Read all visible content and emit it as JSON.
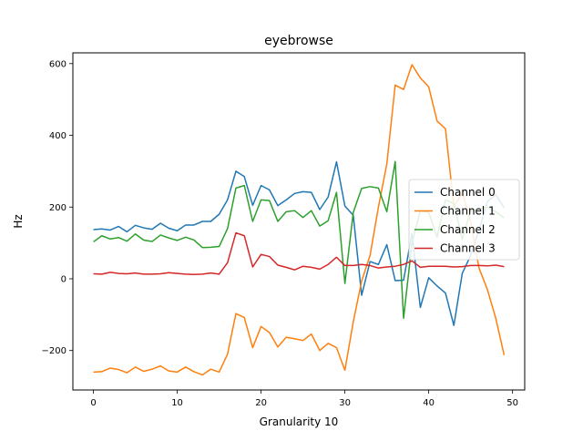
{
  "chart_data": {
    "type": "line",
    "title": "eyebrowse",
    "xlabel": "Granularity 10",
    "ylabel": "Hz",
    "xlim": [
      -2.45,
      51.45
    ],
    "ylim": [
      -310,
      630
    ],
    "xticks": [
      0,
      10,
      20,
      30,
      40,
      50
    ],
    "yticks": [
      -200,
      0,
      200,
      400,
      600
    ],
    "grid": false,
    "legend_position": "center-right",
    "x": [
      0,
      1,
      2,
      3,
      4,
      5,
      6,
      7,
      8,
      9,
      10,
      11,
      12,
      13,
      14,
      15,
      16,
      17,
      18,
      19,
      20,
      21,
      22,
      23,
      24,
      25,
      26,
      27,
      28,
      29,
      30,
      31,
      32,
      33,
      34,
      35,
      36,
      37,
      38,
      39,
      40,
      41,
      42,
      43,
      44,
      45,
      46,
      47,
      48,
      49
    ],
    "series": [
      {
        "name": "Channel 0",
        "color": "#1f77b4",
        "values": [
          137,
          139,
          136,
          146,
          131,
          149,
          142,
          138,
          155,
          141,
          134,
          150,
          150,
          160,
          160,
          180,
          220,
          300,
          285,
          205,
          260,
          248,
          204,
          220,
          238,
          243,
          241,
          193,
          228,
          326,
          203,
          177,
          -46,
          48,
          40,
          95,
          -5,
          -4,
          126,
          -80,
          3,
          -20,
          -40,
          -130,
          15,
          65,
          135,
          215,
          235,
          198
        ]
      },
      {
        "name": "Channel 1",
        "color": "#ff7f0e",
        "values": [
          -260,
          -259,
          -249,
          -253,
          -262,
          -246,
          -258,
          -252,
          -243,
          -257,
          -260,
          -246,
          -259,
          -268,
          -252,
          -260,
          -210,
          -97,
          -108,
          -192,
          -133,
          -150,
          -190,
          -163,
          -167,
          -172,
          -154,
          -200,
          -180,
          -192,
          -255,
          -120,
          -6,
          65,
          200,
          320,
          540,
          528,
          597,
          560,
          535,
          440,
          418,
          200,
          240,
          160,
          30,
          -30,
          -110,
          -213
        ]
      },
      {
        "name": "Channel 2",
        "color": "#2ca02c",
        "values": [
          103,
          120,
          111,
          115,
          105,
          125,
          108,
          104,
          122,
          114,
          107,
          116,
          108,
          87,
          88,
          90,
          140,
          253,
          260,
          160,
          220,
          218,
          160,
          187,
          190,
          171,
          190,
          147,
          162,
          241,
          -13,
          185,
          252,
          257,
          253,
          187,
          327,
          -110,
          99,
          190,
          185,
          116,
          220,
          210,
          110,
          190,
          195,
          200,
          187,
          170
        ]
      },
      {
        "name": "Channel 3",
        "color": "#d62728",
        "values": [
          14,
          13,
          18,
          15,
          14,
          16,
          13,
          13,
          14,
          17,
          15,
          13,
          12,
          13,
          16,
          13,
          45,
          128,
          120,
          33,
          68,
          62,
          38,
          32,
          25,
          35,
          32,
          27,
          40,
          60,
          37,
          37,
          40,
          37,
          30,
          33,
          35,
          40,
          50,
          32,
          35,
          35,
          35,
          33,
          34,
          37,
          37,
          36,
          38,
          34
        ]
      }
    ]
  }
}
